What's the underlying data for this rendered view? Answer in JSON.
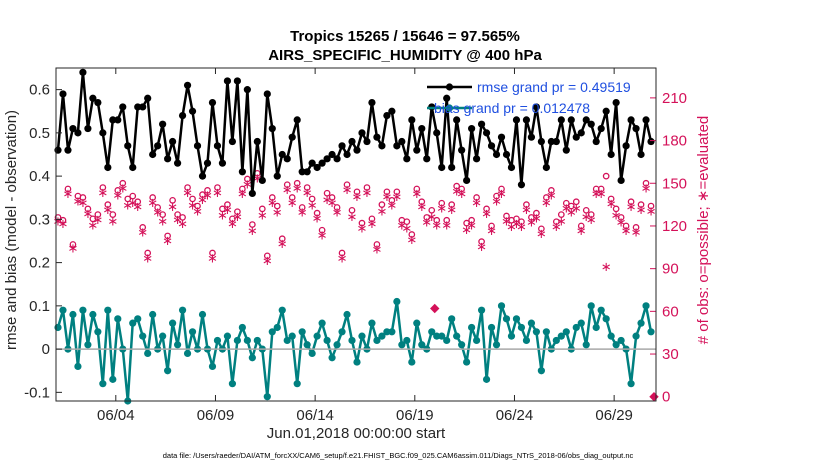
{
  "chart_data": {
    "type": "line",
    "title": "Tropics 15265 / 15646 = 97.565%",
    "subtitle": "AIRS_SPECIFIC_HUMIDITY @ 400 hPa",
    "xlabel": "Jun.01,2018 00:00:00 start",
    "ylabel": "rmse and bias (model - observation)",
    "y2label": "# of obs: o=possible; ∗=evaluated",
    "footnote": "data file: /Users/raeder/DAI/ATM_forcXX/CAM6_setup/f.e21.FHIST_BGC.f09_025.CAM6assim.011/Diags_NTrS_2018-06/obs_diag_output.nc",
    "xlim": [
      1,
      31.1
    ],
    "ylim": [
      -0.12,
      0.65
    ],
    "y2lim": [
      -3,
      231
    ],
    "x_ticks": [
      {
        "v": 4,
        "label": "06/04"
      },
      {
        "v": 9,
        "label": "06/09"
      },
      {
        "v": 14,
        "label": "06/14"
      },
      {
        "v": 19,
        "label": "06/19"
      },
      {
        "v": 24,
        "label": "06/24"
      },
      {
        "v": 29,
        "label": "06/29"
      }
    ],
    "y_ticks": [
      {
        "v": -0.1,
        "label": "-0.1"
      },
      {
        "v": 0,
        "label": "0"
      },
      {
        "v": 0.1,
        "label": "0.1"
      },
      {
        "v": 0.2,
        "label": "0.2"
      },
      {
        "v": 0.3,
        "label": "0.3"
      },
      {
        "v": 0.4,
        "label": "0.4"
      },
      {
        "v": 0.5,
        "label": "0.5"
      },
      {
        "v": 0.6,
        "label": "0.6"
      }
    ],
    "y2_ticks": [
      {
        "v": 0,
        "label": "0"
      },
      {
        "v": 30,
        "label": "30"
      },
      {
        "v": 60,
        "label": "60"
      },
      {
        "v": 90,
        "label": "90"
      },
      {
        "v": 120,
        "label": "120"
      },
      {
        "v": 150,
        "label": "150"
      },
      {
        "v": 180,
        "label": "180"
      },
      {
        "v": 210,
        "label": "210"
      }
    ],
    "x_start": 1.1,
    "x_step": 0.25,
    "series": [
      {
        "name": "rmse grand pr = 0.49519",
        "color": "#000000",
        "values": [
          0.46,
          0.59,
          0.46,
          0.51,
          0.5,
          0.64,
          0.51,
          0.58,
          0.57,
          0.5,
          0.42,
          0.53,
          0.53,
          0.56,
          0.47,
          0.42,
          0.56,
          0.56,
          0.58,
          0.45,
          0.47,
          0.52,
          0.44,
          0.48,
          0.43,
          0.54,
          0.61,
          0.55,
          0.47,
          0.4,
          0.43,
          0.57,
          0.47,
          0.43,
          0.62,
          0.48,
          0.62,
          0.41,
          0.6,
          0.36,
          0.48,
          0.39,
          0.59,
          0.51,
          0.4,
          0.45,
          0.44,
          0.49,
          0.53,
          0.41,
          0.41,
          0.43,
          0.42,
          0.43,
          0.44,
          0.45,
          0.44,
          0.47,
          0.45,
          0.48,
          0.46,
          0.5,
          0.48,
          0.57,
          0.49,
          0.47,
          0.54,
          0.55,
          0.47,
          0.48,
          0.44,
          0.53,
          0.46,
          0.51,
          0.44,
          0.56,
          0.5,
          0.42,
          0.58,
          0.42,
          0.53,
          0.46,
          0.39,
          0.51,
          0.44,
          0.52,
          0.5,
          0.47,
          0.45,
          0.49,
          0.45,
          0.42,
          0.53,
          0.38,
          0.53,
          0.49,
          0.56,
          0.48,
          0.42,
          0.48,
          0.48,
          0.53,
          0.46,
          0.53,
          0.49,
          0.5,
          0.53,
          0.52,
          0.48,
          0.51,
          0.55,
          0.45,
          0.57,
          0.39,
          0.47,
          0.53,
          0.51,
          0.45,
          0.53,
          0.48
        ],
        "markers": [
          0.46,
          0.59,
          0.46,
          0.51,
          0.5,
          0.64,
          0.51,
          0.58,
          0.57,
          0.5,
          0.42,
          0.53,
          0.53,
          0.56,
          0.47,
          0.42,
          0.56,
          0.56,
          0.58,
          0.45,
          0.47,
          0.52,
          0.44,
          0.48,
          0.43,
          0.54,
          0.61,
          0.55,
          0.47,
          0.4,
          0.43,
          0.57,
          0.47,
          0.43,
          0.62,
          0.48,
          0.62,
          0.41,
          0.6,
          0.36,
          0.48,
          0.39,
          0.59,
          0.51,
          0.4,
          0.45,
          0.44,
          0.49,
          0.53,
          0.41,
          0.41,
          0.43,
          0.42,
          0.43,
          0.44,
          0.45,
          0.44,
          0.47,
          0.45,
          0.48,
          0.46,
          0.5,
          0.48,
          0.57,
          0.49,
          0.47,
          0.54,
          0.55,
          0.47,
          0.48,
          0.44,
          0.53,
          0.46,
          0.51,
          0.44,
          0.56,
          0.5,
          0.42,
          0.58,
          0.42,
          0.53,
          0.46,
          0.39,
          0.51,
          0.44,
          0.52,
          0.5,
          0.47,
          0.45,
          0.49,
          0.45,
          0.42,
          0.53,
          0.38,
          0.53,
          0.49,
          0.56,
          0.48,
          0.42,
          0.48,
          0.48,
          0.53,
          0.46,
          0.53,
          0.49,
          0.5,
          0.53,
          0.52,
          0.48,
          0.51,
          0.55,
          0.45,
          0.57,
          0.39,
          0.47,
          0.53,
          0.51,
          0.45,
          0.53,
          0.48
        ]
      },
      {
        "name": "bias grand pr = 0.012478",
        "color": "#008080",
        "values": [
          0.05,
          0.09,
          0.0,
          0.08,
          -0.04,
          0.09,
          0.01,
          0.08,
          0.04,
          -0.08,
          0.09,
          -0.07,
          0.07,
          0.0,
          -0.12,
          0.06,
          0.07,
          0.03,
          -0.01,
          0.08,
          0.0,
          0.03,
          -0.05,
          0.06,
          0.01,
          0.09,
          -0.01,
          0.04,
          0.0,
          0.08,
          0.0,
          -0.04,
          0.02,
          0.0,
          0.03,
          -0.08,
          0.02,
          0.05,
          0.02,
          -0.02,
          0.02,
          0.0,
          -0.11,
          0.04,
          0.05,
          0.09,
          0.02,
          0.03,
          -0.08,
          0.04,
          0.01,
          -0.01,
          0.03,
          0.06,
          0.02,
          -0.02,
          0.01,
          0.04,
          0.08,
          0.02,
          -0.03,
          0.03,
          0.0,
          0.06,
          0.02,
          0.03,
          0.04,
          0.04,
          0.11,
          0.01,
          0.02,
          -0.03,
          0.06,
          0.01,
          0.0,
          0.04,
          0.03,
          0.03,
          0.02,
          0.07,
          0.03,
          0.01,
          -0.03,
          0.05,
          0.02,
          0.09,
          -0.07,
          0.05,
          0.01,
          0.1,
          0.07,
          0.03,
          0.07,
          0.05,
          0.02,
          0.06,
          0.04,
          -0.05,
          0.04,
          0.0,
          0.02,
          0.03,
          0.04,
          0.0,
          0.05,
          0.06,
          0.01,
          0.1,
          0.05,
          0.09,
          0.07,
          0.03,
          0.01,
          0.02,
          0.0,
          -0.08,
          0.03,
          0.06,
          0.1,
          0.04
        ],
        "markers": [
          0.05,
          0.09,
          0.0,
          0.08,
          -0.04,
          0.09,
          0.01,
          0.08,
          0.04,
          -0.08,
          0.09,
          -0.07,
          0.07,
          0.0,
          -0.12,
          0.06,
          0.07,
          0.03,
          -0.01,
          0.08,
          0.0,
          0.03,
          -0.05,
          0.06,
          0.01,
          0.09,
          -0.01,
          0.04,
          0.0,
          0.08,
          0.0,
          -0.04,
          0.02,
          0.0,
          0.03,
          -0.08,
          0.02,
          0.05,
          0.02,
          -0.02,
          0.02,
          0.0,
          -0.11,
          0.04,
          0.05,
          0.09,
          0.02,
          0.03,
          -0.08,
          0.04,
          0.01,
          -0.01,
          0.03,
          0.06,
          0.02,
          -0.02,
          0.01,
          0.04,
          0.08,
          0.02,
          -0.03,
          0.03,
          0.0,
          0.06,
          0.02,
          0.03,
          0.04,
          0.04,
          0.11,
          0.01,
          0.02,
          -0.03,
          0.06,
          0.01,
          0.0,
          0.04,
          0.03,
          0.03,
          0.02,
          0.07,
          0.03,
          0.01,
          -0.03,
          0.05,
          0.02,
          0.09,
          -0.07,
          0.05,
          0.01,
          0.1,
          0.07,
          0.03,
          0.07,
          0.05,
          0.02,
          0.06,
          0.04,
          -0.05,
          0.04,
          0.0,
          0.02,
          0.03,
          0.04,
          0.0,
          0.05,
          0.06,
          0.01,
          0.1,
          0.05,
          0.09,
          0.07,
          0.03,
          0.01,
          0.02,
          0.0,
          -0.08,
          0.03,
          0.06,
          0.1,
          0.04
        ]
      }
    ],
    "obs_possible": [
      126,
      124,
      146,
      107,
      141,
      140,
      132,
      125,
      128,
      147,
      135,
      128,
      145,
      150,
      139,
      141,
      137,
      119,
      101,
      140,
      133,
      128,
      113,
      138,
      128,
      126,
      147,
      139,
      134,
      142,
      145,
      101,
      147,
      132,
      135,
      125,
      130,
      146,
      153,
      121,
      157,
      132,
      99,
      140,
      134,
      111,
      149,
      140,
      150,
      133,
      147,
      139,
      129,
      117,
      143,
      140,
      133,
      101,
      149,
      131,
      144,
      122,
      147,
      125,
      107,
      135,
      144,
      138,
      144,
      124,
      123,
      114,
      146,
      137,
      126,
      131,
      124,
      136,
      124,
      135,
      148,
      146,
      122,
      124,
      140,
      109,
      132,
      120,
      141,
      146,
      127,
      124,
      125,
      123,
      135,
      126,
      129,
      118,
      140,
      145,
      123,
      128,
      136,
      134,
      137,
      120,
      131,
      128,
      146,
      146,
      155,
      139,
      132,
      126,
      120,
      137,
      119,
      135,
      150,
      134
    ],
    "obs_evaluated": [
      124,
      122,
      143,
      105,
      138,
      137,
      129,
      121,
      125,
      144,
      132,
      124,
      142,
      147,
      135,
      137,
      134,
      116,
      98,
      137,
      130,
      124,
      110,
      134,
      125,
      122,
      144,
      135,
      131,
      139,
      142,
      98,
      144,
      128,
      132,
      122,
      127,
      143,
      150,
      117,
      154,
      128,
      96,
      137,
      130,
      108,
      146,
      137,
      147,
      130,
      144,
      135,
      126,
      114,
      139,
      137,
      130,
      98,
      146,
      127,
      141,
      119,
      144,
      122,
      104,
      131,
      141,
      135,
      141,
      121,
      119,
      111,
      143,
      134,
      123,
      127,
      121,
      133,
      121,
      132,
      145,
      143,
      118,
      121,
      137,
      106,
      129,
      117,
      138,
      143,
      124,
      120,
      122,
      120,
      132,
      123,
      126,
      115,
      137,
      142,
      120,
      124,
      133,
      130,
      133,
      117,
      127,
      125,
      143,
      143,
      92,
      136,
      128,
      123,
      117,
      134,
      116,
      132,
      147,
      131
    ],
    "obs_isolated": [
      {
        "x": 20.0,
        "count": 62,
        "marker": "diamond"
      },
      {
        "x": 31.0,
        "count": 0,
        "marker": "diamond"
      }
    ],
    "obs_color": "#D41159",
    "zero_line": 0,
    "grid": false,
    "legend_position": "top-right"
  }
}
